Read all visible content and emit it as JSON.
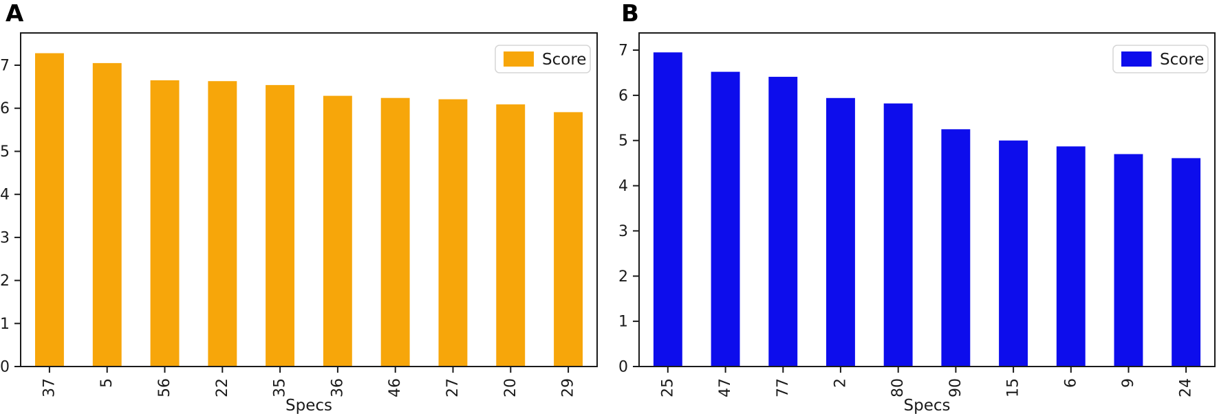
{
  "figure": {
    "background_color": "#ffffff",
    "text_color": "#1a1a1a",
    "spine_color": "#1a1a1a",
    "legend_border_color": "#d5d5d5"
  },
  "chart_data": [
    {
      "type": "bar",
      "panel_label": "A",
      "title": "",
      "xlabel": "Specs",
      "ylabel": "",
      "categories": [
        "37",
        "5",
        "56",
        "22",
        "35",
        "36",
        "46",
        "27",
        "20",
        "29"
      ],
      "series": [
        {
          "name": "Score",
          "color": "#F7A60A",
          "values": [
            7.28,
            7.05,
            6.65,
            6.63,
            6.54,
            6.29,
            6.24,
            6.21,
            6.09,
            5.91
          ]
        }
      ],
      "yticks": [
        0,
        1,
        2,
        3,
        4,
        5,
        6,
        7
      ],
      "ylim": [
        0,
        7.75
      ],
      "xtick_rotation": 90,
      "grid": false,
      "legend": {
        "position": "upper-right",
        "entries": [
          "Score"
        ]
      }
    },
    {
      "type": "bar",
      "panel_label": "B",
      "title": "",
      "xlabel": "Specs",
      "ylabel": "",
      "categories": [
        "25",
        "47",
        "77",
        "2",
        "80",
        "90",
        "15",
        "6",
        "9",
        "24"
      ],
      "series": [
        {
          "name": "Score",
          "color": "#0D0DEC",
          "values": [
            6.95,
            6.52,
            6.41,
            5.94,
            5.82,
            5.25,
            5.0,
            4.87,
            4.7,
            4.61
          ]
        }
      ],
      "yticks": [
        0,
        1,
        2,
        3,
        4,
        5,
        6,
        7
      ],
      "ylim": [
        0,
        7.38
      ],
      "xtick_rotation": 90,
      "grid": false,
      "legend": {
        "position": "upper-right",
        "entries": [
          "Score"
        ]
      }
    }
  ]
}
